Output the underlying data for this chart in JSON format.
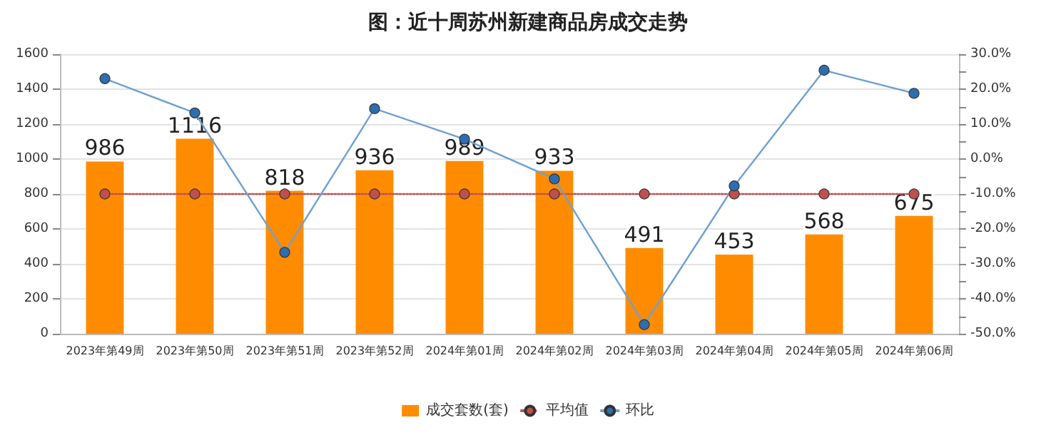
{
  "chart_data": {
    "type": "bar",
    "title": "图：近十周苏州新建商品房成交走势",
    "categories": [
      "2023年第49周",
      "2023年第50周",
      "2023年第51周",
      "2023年第52周",
      "2024年第01周",
      "2024年第02周",
      "2024年第03周",
      "2024年第04周",
      "2024年第05周",
      "2024年第06周"
    ],
    "series": [
      {
        "name": "成交套数(套)",
        "color": "#ff8c00",
        "values": [
          986,
          1116,
          818,
          936,
          989,
          933,
          491,
          453,
          568,
          675
        ],
        "value_labels": [
          "986",
          "1116",
          "818",
          "936",
          "989",
          "933",
          "491",
          "453",
          "568",
          "675"
        ]
      },
      {
        "name": "平均值",
        "type": "line",
        "color": "#c0504d",
        "line_style": "dotted",
        "values": [
          800,
          800,
          800,
          800,
          800,
          800,
          800,
          800,
          800,
          800
        ]
      },
      {
        "name": "环比",
        "type": "line",
        "axis": "y2",
        "color": "#6fa0d0",
        "line_style": "solid",
        "values": [
          23,
          13.2,
          -26.7,
          14.4,
          5.7,
          -5.7,
          -47.4,
          -7.7,
          25.4,
          18.8
        ]
      }
    ],
    "ylim": [
      0,
      1600
    ],
    "yticks": [
      0,
      200,
      400,
      600,
      800,
      1000,
      1200,
      1400,
      1600
    ],
    "y2lim": [
      -50,
      30
    ],
    "y2ticks": [
      {
        "value": -50,
        "label": "-50.0%"
      },
      {
        "value": -45,
        "label": null
      },
      {
        "value": -40,
        "label": "-40.0%"
      },
      {
        "value": -35,
        "label": null
      },
      {
        "value": -30,
        "label": "-30.0%"
      },
      {
        "value": -25,
        "label": null
      },
      {
        "value": -20,
        "label": "-20.0%"
      },
      {
        "value": -15,
        "label": null
      },
      {
        "value": -10,
        "label": "-10.0%"
      },
      {
        "value": -5,
        "label": null
      },
      {
        "value": 0,
        "label": "0.0%"
      },
      {
        "value": 5,
        "label": null
      },
      {
        "value": 10,
        "label": "10.0%"
      },
      {
        "value": 15,
        "label": null
      },
      {
        "value": 20,
        "label": "20.0%"
      },
      {
        "value": 25,
        "label": null
      },
      {
        "value": 30,
        "label": "30.0%"
      }
    ],
    "grid": "y",
    "legend": "bottom",
    "marker": "circle"
  }
}
